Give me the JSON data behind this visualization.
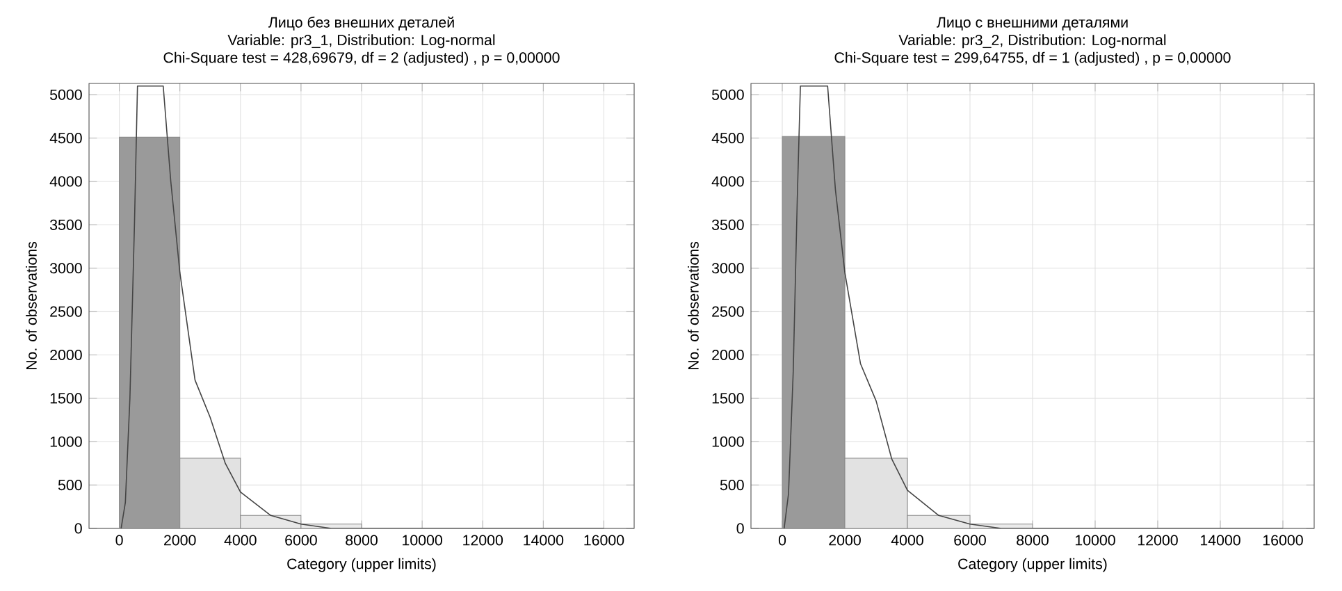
{
  "chart_data": [
    {
      "type": "histogram",
      "title": "Лицо без внешних деталей",
      "subtitle": "Variable: pr3_1, Distribution: Log-normal",
      "annotations": [
        "Chi-Square test = 428,69679, df = 2 (adjusted) , p = 0,00000"
      ],
      "xlabel": "Category (upper limits)",
      "ylabel": "No. of observations",
      "bins": [
        0,
        2000,
        4000,
        6000,
        8000
      ],
      "values": [
        4510,
        810,
        150,
        50
      ],
      "colors": [
        "#9a9a9a",
        "#e2e2e2",
        "#e8e8e8",
        "#ebebeb"
      ],
      "series": [
        {
          "type": "line",
          "color": "#444444",
          "x": [
            60,
            200,
            350,
            500,
            600,
            1450,
            1700,
            2000,
            2500,
            3000,
            3500,
            4000,
            5000,
            6000,
            7000,
            8000,
            10000,
            12000,
            14000,
            16000
          ],
          "values": [
            0,
            300,
            1500,
            3500,
            5100,
            5100,
            4000,
            2950,
            1710,
            1280,
            750,
            420,
            150,
            50,
            0,
            0,
            0,
            0,
            0,
            0
          ]
        }
      ],
      "xlim": [
        -1000,
        17000
      ],
      "ylim": [
        0,
        5130
      ],
      "xticks": [
        0,
        2000,
        4000,
        6000,
        8000,
        10000,
        12000,
        14000,
        16000
      ],
      "yticks": [
        0,
        500,
        1000,
        1500,
        2000,
        2500,
        3000,
        3500,
        4000,
        4500,
        5000
      ],
      "grid": true
    },
    {
      "type": "histogram",
      "title": "Лицо с внешними деталями",
      "subtitle": "Variable: pr3_2, Distribution: Log-normal",
      "annotations": [
        "Chi-Square test = 299,64755, df = 1 (adjusted) , p = 0,00000"
      ],
      "xlabel": "Category (upper limits)",
      "ylabel": "No. of observations",
      "bins": [
        0,
        2000,
        4000,
        6000,
        8000
      ],
      "values": [
        4520,
        810,
        150,
        50
      ],
      "colors": [
        "#9a9a9a",
        "#e2e2e2",
        "#e8e8e8",
        "#ebebeb"
      ],
      "series": [
        {
          "type": "line",
          "color": "#444444",
          "x": [
            60,
            200,
            350,
            480,
            580,
            1450,
            1700,
            2000,
            2500,
            3000,
            3500,
            4000,
            5000,
            6000,
            7000,
            8000,
            10000,
            12000,
            14000,
            16000
          ],
          "values": [
            0,
            400,
            1800,
            3800,
            5100,
            5100,
            3900,
            2950,
            1900,
            1470,
            800,
            440,
            150,
            50,
            0,
            0,
            0,
            0,
            0,
            0
          ]
        }
      ],
      "xlim": [
        -1000,
        17000
      ],
      "ylim": [
        0,
        5130
      ],
      "xticks": [
        0,
        2000,
        4000,
        6000,
        8000,
        10000,
        12000,
        14000,
        16000
      ],
      "yticks": [
        0,
        500,
        1000,
        1500,
        2000,
        2500,
        3000,
        3500,
        4000,
        4500,
        5000
      ],
      "grid": true
    }
  ]
}
